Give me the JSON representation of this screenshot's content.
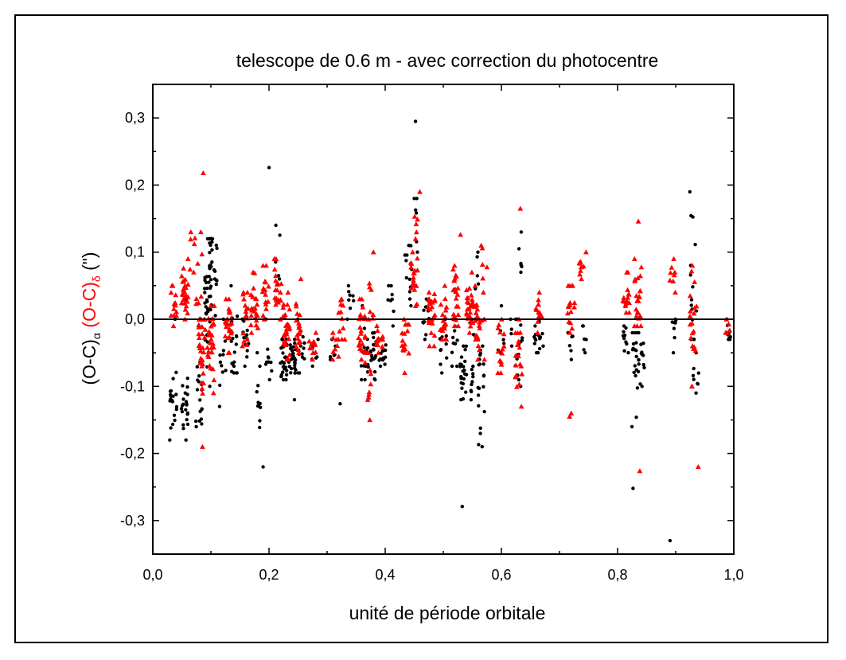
{
  "chart_data": {
    "type": "scatter",
    "title": "telescope de 0.6 m - avec correction du photocentre",
    "xlabel": "unité de période orbitale",
    "ylabel": {
      "alpha_part": "(O-C)",
      "alpha_sub": "α",
      "delta_part": "(O-C)",
      "delta_sub": "δ",
      "unit": "(\")"
    },
    "xlim": [
      0.0,
      1.0
    ],
    "ylim": [
      -0.35,
      0.35
    ],
    "x_ticks": [
      "0,0",
      "0,2",
      "0,4",
      "0,6",
      "0,8",
      "1,0"
    ],
    "y_ticks": [
      "-0,3",
      "-0,2",
      "-0,1",
      "0,0",
      "0,1",
      "0,2",
      "0,3"
    ],
    "reference_line_y": 0.0,
    "grid": false,
    "colors": {
      "alpha": "#000000",
      "delta": "#ff0000"
    },
    "series": [
      {
        "symbol": "circle",
        "color": "#000000",
        "clusters": [
          [
            0.035,
            -0.12,
            0.02,
            20,
            -0.18,
            0.0
          ],
          [
            0.055,
            -0.13,
            0.025,
            22,
            -0.18,
            0.03
          ],
          [
            0.08,
            -0.1,
            0.03,
            18,
            -0.16,
            0.0
          ],
          [
            0.095,
            0.04,
            0.05,
            40,
            -0.1,
            0.12
          ],
          [
            0.105,
            0.07,
            0.03,
            20,
            0.0,
            0.12
          ],
          [
            0.12,
            -0.06,
            0.03,
            12,
            -0.13,
            0.0
          ],
          [
            0.14,
            -0.04,
            0.03,
            18,
            -0.08,
            0.05
          ],
          [
            0.16,
            -0.03,
            0.02,
            14,
            -0.07,
            0.0
          ],
          [
            0.185,
            -0.12,
            0.03,
            12,
            -0.22,
            -0.05
          ],
          [
            0.2,
            -0.06,
            0.02,
            10,
            -0.09,
            0.0
          ],
          [
            0.205,
            0.226,
            0.0,
            1,
            0.226,
            0.226
          ],
          [
            0.215,
            0.1,
            0.03,
            5,
            0.06,
            0.14
          ],
          [
            0.225,
            -0.06,
            0.015,
            30,
            -0.09,
            -0.03
          ],
          [
            0.24,
            -0.06,
            0.015,
            30,
            -0.12,
            -0.03
          ],
          [
            0.255,
            -0.05,
            0.02,
            12,
            -0.08,
            0.0
          ],
          [
            0.28,
            -0.05,
            0.01,
            8,
            -0.07,
            -0.03
          ],
          [
            0.31,
            -0.05,
            0.01,
            6,
            -0.06,
            -0.03
          ],
          [
            0.325,
            -0.126,
            0.0,
            1,
            -0.126,
            -0.126
          ],
          [
            0.34,
            0.03,
            0.015,
            8,
            0.0,
            0.05
          ],
          [
            0.365,
            -0.06,
            0.02,
            20,
            -0.09,
            0.02
          ],
          [
            0.38,
            -0.05,
            0.02,
            20,
            -0.09,
            -0.02
          ],
          [
            0.395,
            -0.05,
            0.01,
            14,
            -0.07,
            -0.03
          ],
          [
            0.41,
            0.02,
            0.02,
            8,
            -0.01,
            0.05
          ],
          [
            0.44,
            0.06,
            0.02,
            14,
            0.02,
            0.11
          ],
          [
            0.455,
            0.14,
            0.04,
            6,
            0.1,
            0.18
          ],
          [
            0.458,
            0.295,
            0.0,
            1,
            0.295,
            0.295
          ],
          [
            0.47,
            0.0,
            0.02,
            10,
            -0.03,
            0.03
          ],
          [
            0.5,
            -0.04,
            0.02,
            10,
            -0.08,
            0.0
          ],
          [
            0.52,
            -0.04,
            0.02,
            10,
            -0.07,
            0.0
          ],
          [
            0.535,
            -0.08,
            0.02,
            22,
            -0.12,
            -0.04
          ],
          [
            0.535,
            -0.279,
            0.0,
            1,
            -0.279,
            -0.279
          ],
          [
            0.55,
            -0.07,
            0.03,
            14,
            -0.12,
            0.02
          ],
          [
            0.565,
            -0.1,
            0.04,
            20,
            -0.19,
            -0.04
          ],
          [
            0.555,
            0.04,
            0.03,
            8,
            0.0,
            0.1
          ],
          [
            0.6,
            -0.03,
            0.01,
            6,
            -0.05,
            0.02
          ],
          [
            0.62,
            -0.02,
            0.01,
            4,
            -0.04,
            0.0
          ],
          [
            0.63,
            -0.05,
            0.03,
            14,
            -0.1,
            0.0
          ],
          [
            0.63,
            0.09,
            0.02,
            6,
            0.07,
            0.13
          ],
          [
            0.66,
            -0.03,
            0.01,
            10,
            -0.05,
            -0.01
          ],
          [
            0.67,
            -0.02,
            0.01,
            6,
            -0.04,
            0.0
          ],
          [
            0.72,
            -0.04,
            0.01,
            6,
            -0.06,
            -0.02
          ],
          [
            0.74,
            -0.03,
            0.01,
            6,
            -0.05,
            -0.01
          ],
          [
            0.815,
            -0.03,
            0.01,
            10,
            -0.05,
            -0.01
          ],
          [
            0.83,
            -0.06,
            0.03,
            18,
            -0.16,
            -0.02
          ],
          [
            0.83,
            -0.252,
            0.0,
            1,
            -0.252,
            -0.252
          ],
          [
            0.84,
            -0.06,
            0.02,
            14,
            -0.1,
            -0.02
          ],
          [
            0.895,
            -0.02,
            0.01,
            8,
            -0.05,
            0.0
          ],
          [
            0.895,
            -0.33,
            0.0,
            1,
            -0.33,
            -0.33
          ],
          [
            0.93,
            0.06,
            0.06,
            16,
            -0.03,
            0.19
          ],
          [
            0.935,
            -0.08,
            0.02,
            8,
            -0.11,
            -0.05
          ],
          [
            0.99,
            -0.02,
            0.01,
            8,
            -0.03,
            0.0
          ]
        ]
      },
      {
        "symbol": "triangle",
        "color": "#ff0000",
        "clusters": [
          [
            0.035,
            0.02,
            0.015,
            14,
            -0.01,
            0.05
          ],
          [
            0.055,
            0.04,
            0.02,
            30,
            0.0,
            0.09
          ],
          [
            0.068,
            0.1,
            0.02,
            6,
            0.07,
            0.13
          ],
          [
            0.08,
            0.05,
            0.03,
            10,
            0.0,
            0.13
          ],
          [
            0.082,
            0.218,
            0.0,
            1,
            0.218,
            0.218
          ],
          [
            0.085,
            -0.05,
            0.04,
            30,
            -0.19,
            0.0
          ],
          [
            0.1,
            -0.04,
            0.03,
            30,
            -0.11,
            0.02
          ],
          [
            0.13,
            -0.01,
            0.02,
            24,
            -0.05,
            0.03
          ],
          [
            0.16,
            0.0,
            0.02,
            16,
            -0.04,
            0.04
          ],
          [
            0.175,
            0.02,
            0.02,
            24,
            -0.02,
            0.07
          ],
          [
            0.195,
            0.04,
            0.02,
            16,
            0.0,
            0.08
          ],
          [
            0.215,
            0.05,
            0.02,
            20,
            0.0,
            0.09
          ],
          [
            0.23,
            -0.02,
            0.02,
            30,
            -0.06,
            0.04
          ],
          [
            0.25,
            -0.01,
            0.02,
            20,
            -0.05,
            0.06
          ],
          [
            0.275,
            -0.04,
            0.01,
            12,
            -0.06,
            -0.02
          ],
          [
            0.315,
            -0.04,
            0.01,
            8,
            -0.06,
            -0.02
          ],
          [
            0.325,
            0.0,
            0.02,
            12,
            -0.03,
            0.03
          ],
          [
            0.36,
            -0.02,
            0.02,
            24,
            -0.06,
            0.03
          ],
          [
            0.37,
            -0.09,
            0.02,
            10,
            -0.12,
            -0.05
          ],
          [
            0.37,
            -0.15,
            0.0,
            1,
            -0.15,
            -0.15
          ],
          [
            0.375,
            0.05,
            0.03,
            8,
            0.0,
            0.1
          ],
          [
            0.39,
            -0.03,
            0.01,
            14,
            -0.05,
            -0.01
          ],
          [
            0.435,
            -0.04,
            0.02,
            16,
            -0.08,
            0.0
          ],
          [
            0.45,
            0.06,
            0.02,
            20,
            0.02,
            0.1
          ],
          [
            0.455,
            0.15,
            0.02,
            6,
            0.12,
            0.19
          ],
          [
            0.48,
            0.01,
            0.02,
            24,
            -0.04,
            0.04
          ],
          [
            0.5,
            0.0,
            0.02,
            20,
            -0.03,
            0.05
          ],
          [
            0.52,
            0.03,
            0.02,
            24,
            -0.01,
            0.08
          ],
          [
            0.525,
            0.126,
            0.0,
            1,
            0.126,
            0.126
          ],
          [
            0.545,
            0.02,
            0.02,
            24,
            -0.02,
            0.07
          ],
          [
            0.555,
            0.0,
            0.02,
            16,
            -0.03,
            0.05
          ],
          [
            0.565,
            -0.03,
            0.02,
            12,
            -0.06,
            0.0
          ],
          [
            0.57,
            0.08,
            0.02,
            6,
            0.04,
            0.11
          ],
          [
            0.6,
            -0.04,
            0.02,
            14,
            -0.08,
            0.0
          ],
          [
            0.63,
            -0.06,
            0.03,
            20,
            -0.13,
            0.0
          ],
          [
            0.628,
            0.165,
            0.0,
            1,
            0.165,
            0.165
          ],
          [
            0.665,
            0.01,
            0.015,
            14,
            -0.02,
            0.04
          ],
          [
            0.72,
            0.02,
            0.02,
            16,
            -0.02,
            0.05
          ],
          [
            0.72,
            -0.14,
            0.0,
            2,
            -0.145,
            -0.14
          ],
          [
            0.74,
            0.08,
            0.01,
            10,
            0.06,
            0.1
          ],
          [
            0.815,
            0.04,
            0.015,
            16,
            0.01,
            0.07
          ],
          [
            0.835,
            0.03,
            0.02,
            24,
            -0.01,
            0.09
          ],
          [
            0.833,
            0.146,
            0.0,
            1,
            0.146,
            0.146
          ],
          [
            0.833,
            -0.226,
            0.0,
            1,
            -0.226,
            -0.226
          ],
          [
            0.895,
            0.06,
            0.01,
            8,
            0.04,
            0.09
          ],
          [
            0.93,
            0.0,
            0.04,
            20,
            -0.1,
            0.08
          ],
          [
            0.935,
            -0.22,
            0.0,
            1,
            -0.22,
            -0.22
          ],
          [
            0.99,
            -0.01,
            0.01,
            6,
            -0.02,
            0.0
          ]
        ]
      }
    ]
  }
}
